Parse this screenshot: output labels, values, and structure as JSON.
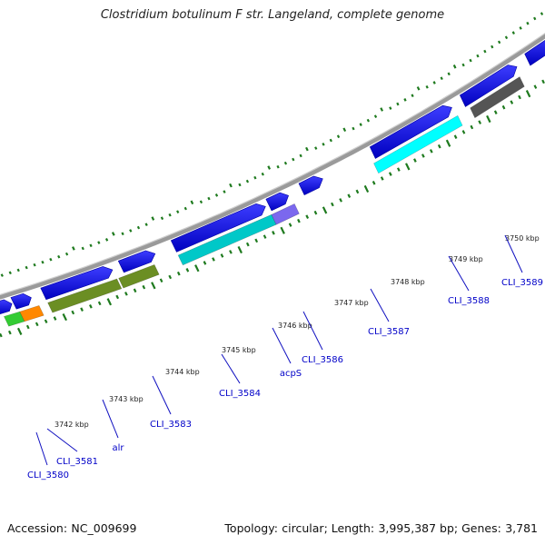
{
  "title": "Clostridium botulinum F str. Langeland, complete genome",
  "footer": {
    "accession_label": "Accession:",
    "accession": "NC_009699",
    "topology_label": "Topology:",
    "topology": "circular",
    "length_label": "Length:",
    "length": "3,995,387 bp",
    "genes_label": "Genes:",
    "genes": "3,781"
  },
  "colors": {
    "backbone": "#9a9a9a",
    "tick": "#1e7a1e",
    "cds": "#0000e6",
    "label": "#0000c8"
  },
  "kbp_ticks": [
    "3742 kbp",
    "3743 kbp",
    "3744 kbp",
    "3745 kbp",
    "3746 kbp",
    "3747 kbp",
    "3748 kbp",
    "3749 kbp",
    "3750 kbp"
  ],
  "gene_labels": [
    "CLI_3580",
    "CLI_3581",
    "alr",
    "CLI_3583",
    "CLI_3584",
    "acpS",
    "CLI_3586",
    "CLI_3587",
    "CLI_3588",
    "CLI_3589"
  ],
  "cog_bar_colors": [
    "#00c8c8",
    "#33cc33",
    "#ff8800",
    "#6b8e23",
    "#6b8e23",
    "#00c8c8",
    "#7b68ee",
    "#00ffff",
    "#555555",
    "#f08080"
  ]
}
